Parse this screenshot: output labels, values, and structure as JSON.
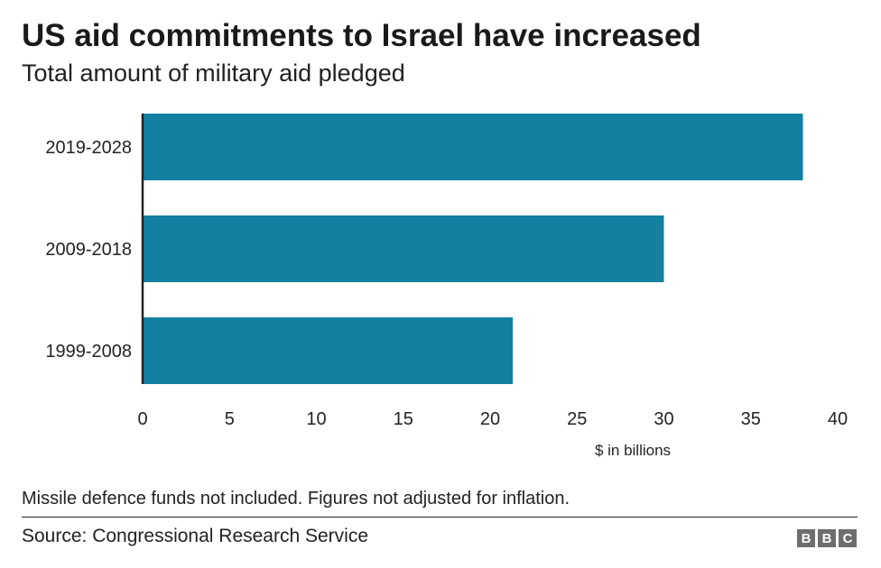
{
  "title": "US aid commitments to Israel have increased",
  "subtitle": "Total amount of military aid pledged",
  "note": "Missile defence funds not included. Figures not adjusted for inflation.",
  "source": "Source: Congressional Research Service",
  "logo": {
    "letters": [
      "B",
      "B",
      "C"
    ],
    "color": "#6e6e6e"
  },
  "chart_data": {
    "type": "bar",
    "orientation": "horizontal",
    "categories": [
      "2019-2028",
      "2009-2018",
      "1999-2008"
    ],
    "values": [
      38,
      30,
      21.3
    ],
    "xlabel": "$ in billions",
    "ylabel": "",
    "xlim": [
      0,
      40
    ],
    "xticks": [
      0,
      5,
      10,
      15,
      20,
      25,
      30,
      35,
      40
    ],
    "grid": false,
    "bar_color": "#1380a1"
  }
}
